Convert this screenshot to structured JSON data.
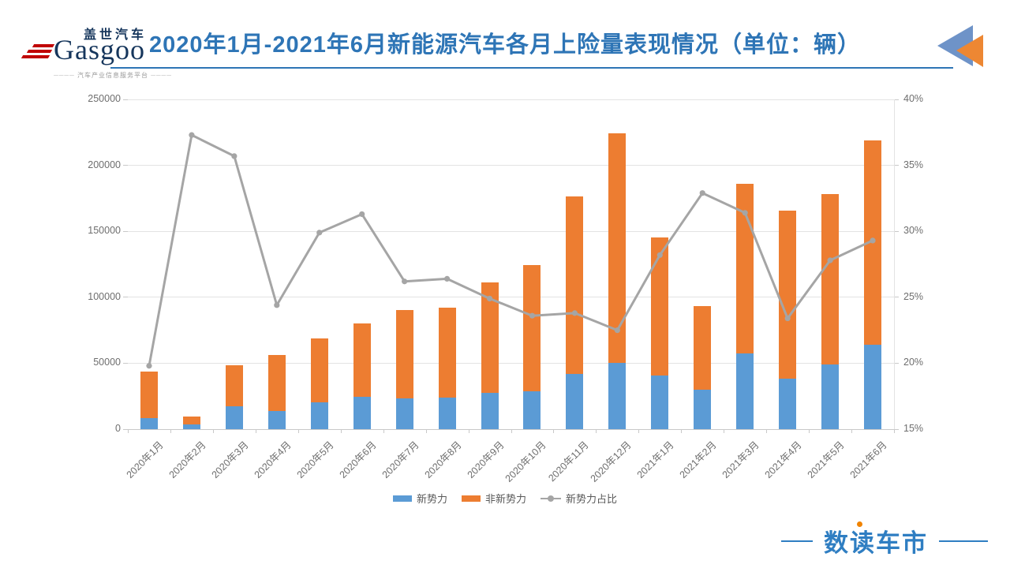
{
  "header": {
    "title": "2020年1月-2021年6月新能源汽车各月上险量表现情况（单位：辆）",
    "logo": {
      "cn": "盖世汽车",
      "en": "Gasgoo",
      "tagline": "汽车产业信息服务平台"
    },
    "accent_color": "#2E75B6"
  },
  "footer": {
    "brand": "数读车市",
    "brand_color": "#2F7EC2",
    "dot_color": "#F08300"
  },
  "chart_data": {
    "type": "bar",
    "subtype": "stacked bars with percentage line on secondary axis",
    "title": "2020年1月-2021年6月新能源汽车各月上险量表现情况（单位：辆）",
    "categories": [
      "2020年1月",
      "2020年2月",
      "2020年3月",
      "2020年4月",
      "2020年5月",
      "2020年6月",
      "2020年7月",
      "2020年8月",
      "2020年9月",
      "2020年10月",
      "2020年11月",
      "2020年12月",
      "2021年1月",
      "2021年2月",
      "2021年3月",
      "2021年4月",
      "2021年5月",
      "2021年6月"
    ],
    "series": [
      {
        "name": "新势力",
        "type": "bar",
        "stack": "total",
        "color": "#5B9BD5",
        "axis": "left",
        "values": [
          8600,
          3600,
          17100,
          13700,
          20500,
          24800,
          23100,
          23900,
          27400,
          28700,
          41800,
          50300,
          40400,
          30100,
          57700,
          38400,
          49200,
          64000
        ]
      },
      {
        "name": "非新势力",
        "type": "bar",
        "stack": "total",
        "color": "#ED7D31",
        "axis": "left",
        "values": [
          35300,
          6100,
          31100,
          42400,
          48000,
          55500,
          67200,
          68300,
          84000,
          95700,
          134500,
          173800,
          104900,
          63400,
          128100,
          127500,
          129000,
          154700
        ]
      },
      {
        "name": "新势力占比",
        "type": "line",
        "color": "#A5A5A5",
        "axis": "right",
        "values": [
          19.8,
          37.3,
          35.7,
          24.4,
          29.9,
          31.3,
          26.2,
          26.4,
          24.9,
          23.6,
          23.8,
          22.5,
          28.2,
          32.9,
          31.4,
          23.4,
          27.8,
          29.3
        ]
      }
    ],
    "left_axis": {
      "min": 0,
      "max": 250000,
      "step": 50000,
      "ticks": [
        "0",
        "50000",
        "100000",
        "150000",
        "200000",
        "250000"
      ]
    },
    "right_axis": {
      "min": 15,
      "max": 40,
      "step": 5,
      "ticks": [
        "15%",
        "20%",
        "25%",
        "30%",
        "35%",
        "40%"
      ],
      "unit": "%"
    },
    "grid": "horizontal only",
    "legend_position": "bottom-center",
    "legend": [
      "新势力",
      "非新势力",
      "新势力占比"
    ]
  }
}
